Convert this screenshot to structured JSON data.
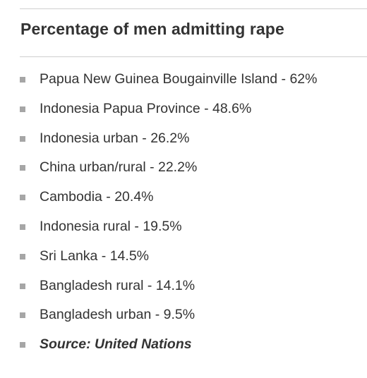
{
  "title": "Percentage of men admitting rape",
  "items": [
    {
      "label": "Papua New Guinea Bougainville Island - 62%"
    },
    {
      "label": "Indonesia Papua Province - 48.6%"
    },
    {
      "label": "Indonesia urban - 26.2%"
    },
    {
      "label": "China urban/rural - 22.2%"
    },
    {
      "label": "Cambodia - 20.4%"
    },
    {
      "label": "Indonesia rural - 19.5%"
    },
    {
      "label": "Sri Lanka - 14.5%"
    },
    {
      "label": "Bangladesh rural - 14.1%"
    },
    {
      "label": "Bangladesh urban - 9.5%"
    }
  ],
  "source": "Source: United Nations",
  "colors": {
    "text": "#333333",
    "bullet": "#a6a6a6",
    "rule": "#cfcfcf"
  }
}
